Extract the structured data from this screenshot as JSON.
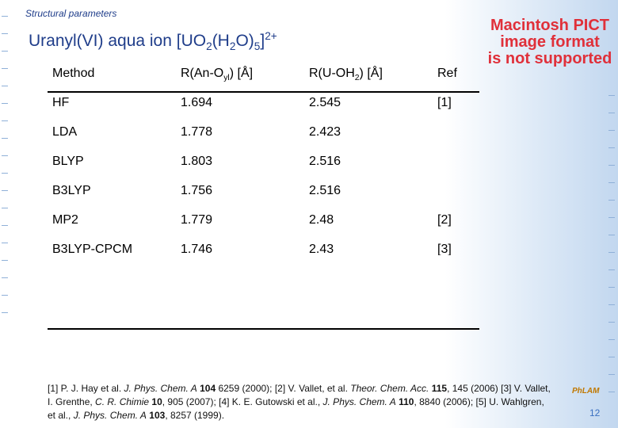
{
  "header": {
    "section": "Structural parameters",
    "title": [
      "Uranyl(VI) aqua ion [UO",
      {
        "text": "2",
        "style": "sub"
      },
      "(H",
      {
        "text": "2",
        "style": "sub"
      },
      "O)",
      {
        "text": "5",
        "style": "sub"
      },
      "]",
      {
        "text": "2+",
        "style": "sup"
      }
    ]
  },
  "table": {
    "columns": [
      [
        "Method"
      ],
      [
        "R(An-O",
        {
          "text": "yl",
          "style": "sub"
        },
        ") [Å]"
      ],
      [
        "R(U-OH",
        {
          "text": "2",
          "style": "sub"
        },
        ") [Å]"
      ],
      [
        "Ref"
      ]
    ],
    "rows": [
      [
        "HF",
        "1.694",
        "2.545",
        "[1]"
      ],
      [
        "LDA",
        "1.778",
        "2.423",
        null
      ],
      [
        "BLYP",
        "1.803",
        "2.516",
        null
      ],
      [
        "B3LYP",
        "1.756",
        "2.516",
        null
      ],
      [
        "MP2",
        "1.779",
        "2.48",
        "[2]"
      ],
      [
        "B3LYP-CPCM",
        "1.746",
        "2.43",
        "[3]"
      ]
    ]
  },
  "placeholder": [
    "Macintosh PICT",
    "image format",
    "is not supported"
  ],
  "footnote": [
    "[1] P. J. Hay et al. ",
    {
      "text": "J. Phys. Chem. A",
      "style": "i"
    },
    " ",
    {
      "text": "104",
      "style": "b"
    },
    " 6259 (2000); [2] V. Vallet, et al. ",
    {
      "text": "Theor. Chem. Acc.",
      "style": "i"
    },
    " ",
    {
      "text": "115",
      "style": "b"
    },
    ", 145 (2006) [3] V. Vallet, I. Grenthe, ",
    {
      "text": "C. R. Chimie",
      "style": "i"
    },
    " ",
    {
      "text": "10",
      "style": "b"
    },
    ", 905 (2007); [4] K. E. Gutowski et al., ",
    {
      "text": "J. Phys. Chem. A",
      "style": "i"
    },
    " ",
    {
      "text": "110",
      "style": "b"
    },
    ", 8840 (2006); [5] U. Wahlgren, et al., ",
    {
      "text": "J. Phys. Chem. A",
      "style": "i"
    },
    " ",
    {
      "text": "103",
      "style": "b"
    },
    ", 8257 (1999)."
  ],
  "logo": "PhLAM",
  "page_number": "12"
}
